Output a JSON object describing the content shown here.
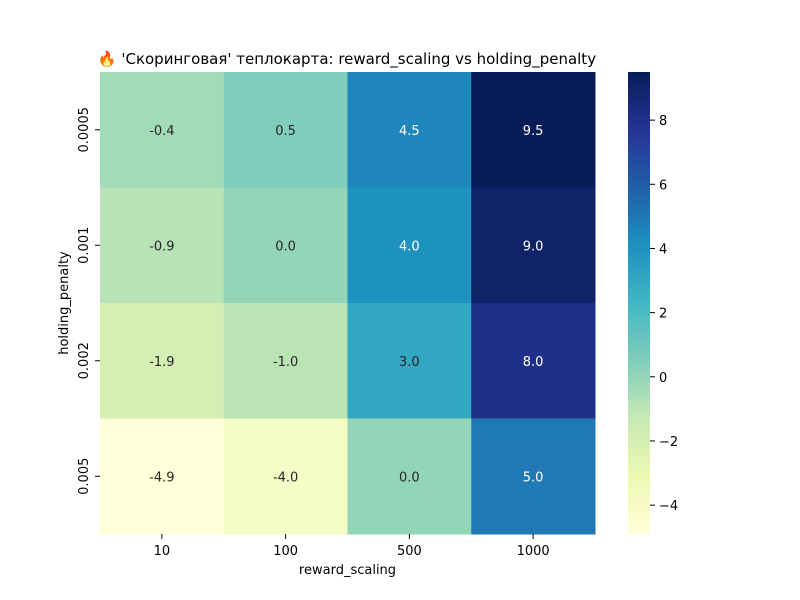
{
  "chart_data": {
    "type": "heatmap",
    "title": "🔥 'Скоринговая' теплокарта: reward_scaling vs holding_penalty",
    "xlabel": "reward_scaling",
    "ylabel": "holding_penalty",
    "x_categories": [
      "10",
      "100",
      "500",
      "1000"
    ],
    "y_categories": [
      "0.0005",
      "0.001",
      "0.002",
      "0.005"
    ],
    "values": [
      [
        -0.4,
        0.5,
        4.5,
        9.5
      ],
      [
        -0.9,
        0.0,
        4.0,
        9.0
      ],
      [
        -1.9,
        -1.0,
        3.0,
        8.0
      ],
      [
        -4.9,
        -4.0,
        0.0,
        5.0
      ]
    ],
    "cell_labels": [
      [
        "-0.4",
        "0.5",
        "4.5",
        "9.5"
      ],
      [
        "-0.9",
        "0.0",
        "4.0",
        "9.0"
      ],
      [
        "-1.9",
        "-1.0",
        "3.0",
        "8.0"
      ],
      [
        "-4.9",
        "-4.0",
        "0.0",
        "5.0"
      ]
    ],
    "colorscale": "YlGnBu",
    "colorscale_stops": [
      "#ffffd9",
      "#edf8b1",
      "#c7e9b4",
      "#7fcdbb",
      "#41b6c4",
      "#1d91c0",
      "#225ea8",
      "#253494",
      "#081d58"
    ],
    "vmin": -4.9,
    "vmax": 9.5,
    "colorbar_ticks": [
      -4,
      -2,
      0,
      2,
      4,
      6,
      8
    ],
    "colorbar_tick_labels": [
      "−4",
      "−2",
      "0",
      "2",
      "4",
      "6",
      "8"
    ],
    "grid": false,
    "legend": "colorbar-right"
  }
}
